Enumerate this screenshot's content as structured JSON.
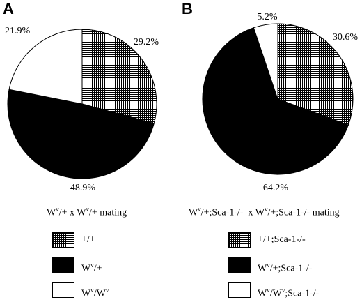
{
  "chart_data": [
    {
      "type": "pie",
      "panel_label": "A",
      "title": "Wv/+ x Wv/+ mating",
      "slices": [
        {
          "label": "+/+",
          "value": 29.2,
          "value_label": "29.2%",
          "fill": "crosshatch"
        },
        {
          "label": "Wv/+",
          "value": 48.9,
          "value_label": "48.9%",
          "fill": "#000000"
        },
        {
          "label": "Wv/Wv",
          "value": 21.9,
          "value_label": "21.9%",
          "fill": "#ffffff"
        }
      ]
    },
    {
      "type": "pie",
      "panel_label": "B",
      "title": "Wv/+;Sca-1-/-  x Wv/+;Sca-1-/- mating",
      "slices": [
        {
          "label": "+/+;Sca-1-/-",
          "value": 30.6,
          "value_label": "30.6%",
          "fill": "crosshatch"
        },
        {
          "label": "Wv/+;Sca-1-/-",
          "value": 64.2,
          "value_label": "64.2%",
          "fill": "#000000"
        },
        {
          "label": "Wv/Wv;Sca-1-/-",
          "value": 5.2,
          "value_label": "5.2%",
          "fill": "#ffffff"
        }
      ]
    }
  ]
}
